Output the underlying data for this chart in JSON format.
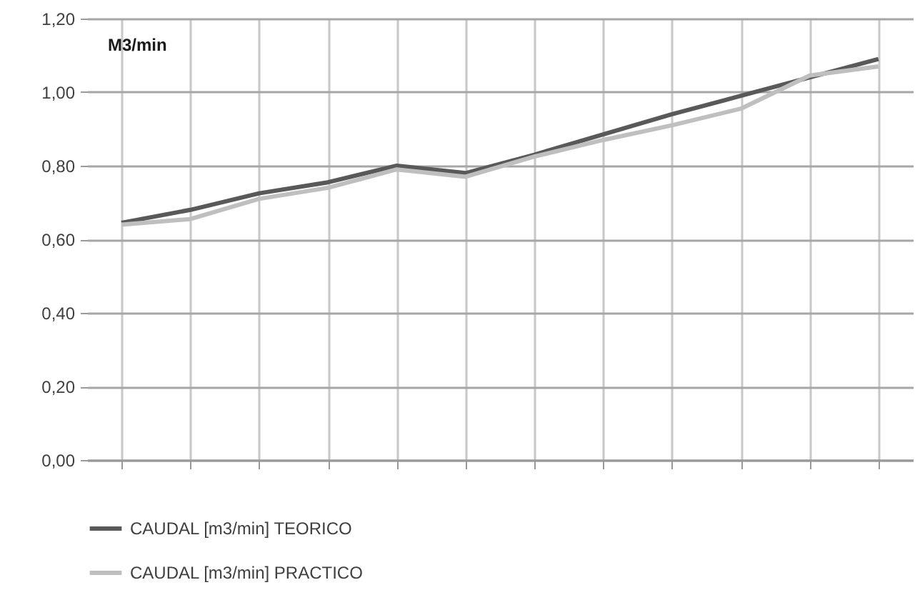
{
  "chart_data": {
    "type": "line",
    "ylabel": "M3/min",
    "categories": [
      null,
      null,
      null,
      null,
      null,
      null,
      null,
      null,
      null,
      null,
      null,
      null
    ],
    "series": [
      {
        "name": "CAUDAL [m3/min] TEORICO",
        "color": "#595959",
        "values": [
          0.645,
          0.68,
          0.725,
          0.755,
          0.8,
          0.78,
          0.83,
          0.885,
          0.94,
          0.99,
          1.04,
          1.09
        ]
      },
      {
        "name": "CAUDAL [m3/min] PRACTICO",
        "color": "#bfbfbf",
        "values": [
          0.64,
          0.655,
          0.71,
          0.74,
          0.79,
          0.77,
          0.825,
          0.87,
          0.91,
          0.955,
          1.045,
          1.07
        ]
      }
    ],
    "ylim": [
      0,
      1.2
    ],
    "yticks": [
      {
        "value": 0,
        "label": "0,00"
      },
      {
        "value": 0.2,
        "label": "0,20"
      },
      {
        "value": 0.4,
        "label": "0,40"
      },
      {
        "value": 0.6,
        "label": "0,60"
      },
      {
        "value": 0.8,
        "label": "0,80"
      },
      {
        "value": 1.0,
        "label": "1,00"
      },
      {
        "value": 1.2,
        "label": "1,20"
      }
    ],
    "grid": true,
    "legend": "bottom",
    "tick_labels": "y",
    "marker": "none",
    "line_style": "solid"
  }
}
